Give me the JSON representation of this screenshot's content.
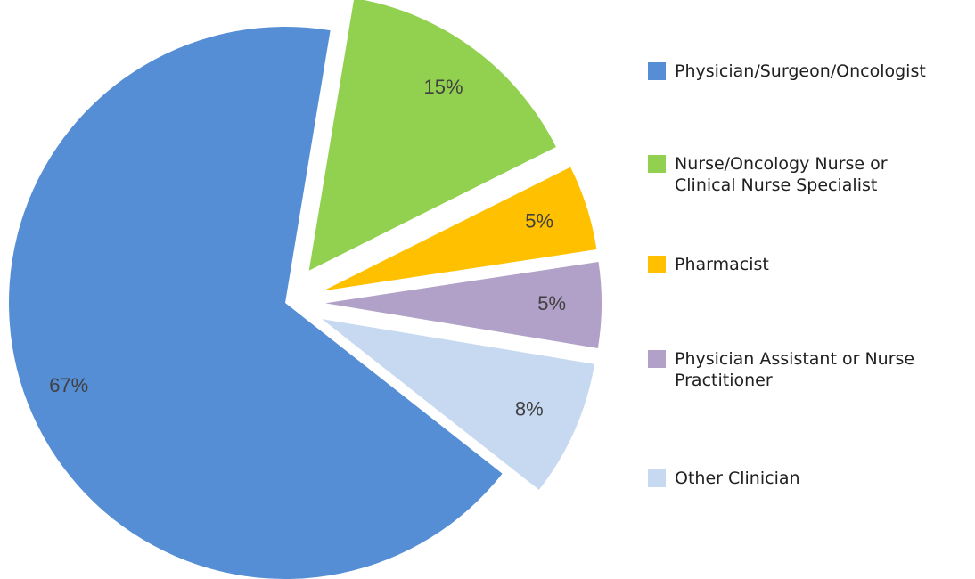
{
  "chart_data": {
    "type": "pie",
    "categories": [
      "Physician/Surgeon/Oncologist",
      "Nurse/Oncology Nurse or Clinical Nurse Specialist",
      "Pharmacist",
      "Physician Assistant or Nurse Practitioner",
      "Other Clinician"
    ],
    "values": [
      67,
      15,
      5,
      5,
      8
    ],
    "value_labels": [
      "67%",
      "15%",
      "5%",
      "5%",
      "8%"
    ],
    "colors": [
      "#558ed5",
      "#92d050",
      "#ffc000",
      "#b1a0c7",
      "#c6d9f1"
    ],
    "legend": "right"
  }
}
